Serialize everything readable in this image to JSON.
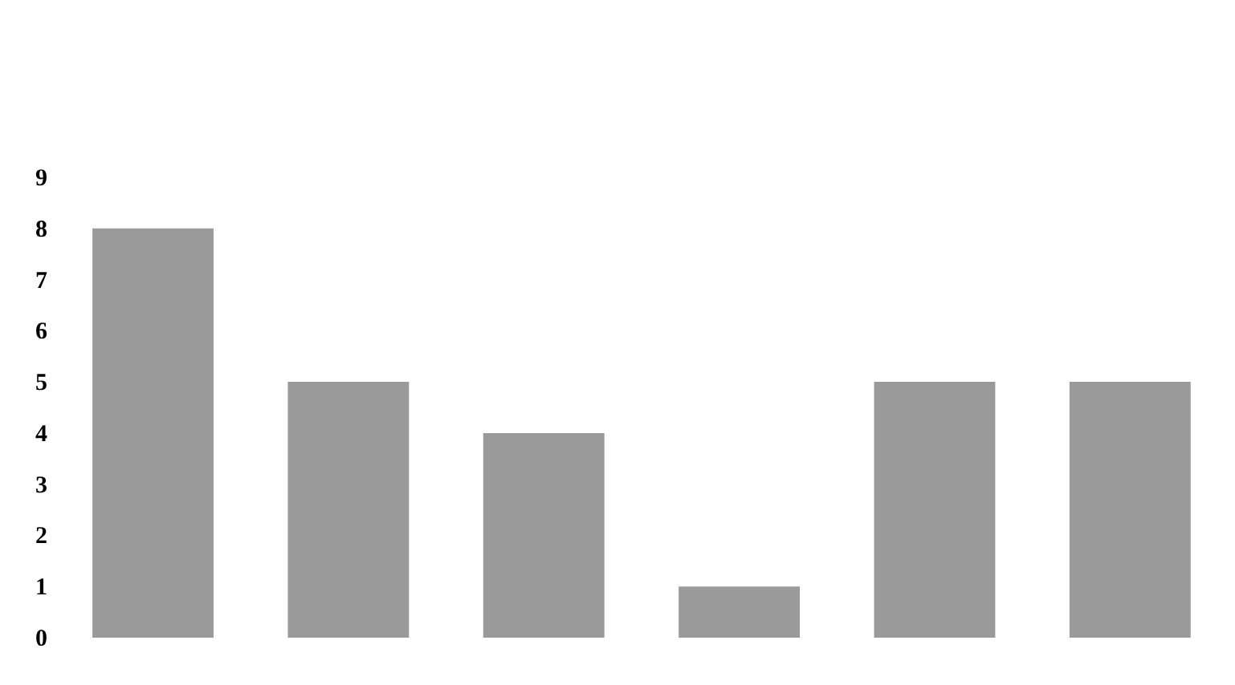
{
  "chart_data": {
    "type": "bar",
    "categories": [
      null,
      null,
      null,
      null,
      null,
      null
    ],
    "values": [
      8,
      5,
      4,
      1,
      5,
      5
    ],
    "color": "#9a9a9a",
    "ylim": [
      0,
      9
    ],
    "yticks": [
      0,
      1,
      2,
      3,
      4,
      5,
      6,
      7,
      8,
      9
    ],
    "grid": false
  }
}
